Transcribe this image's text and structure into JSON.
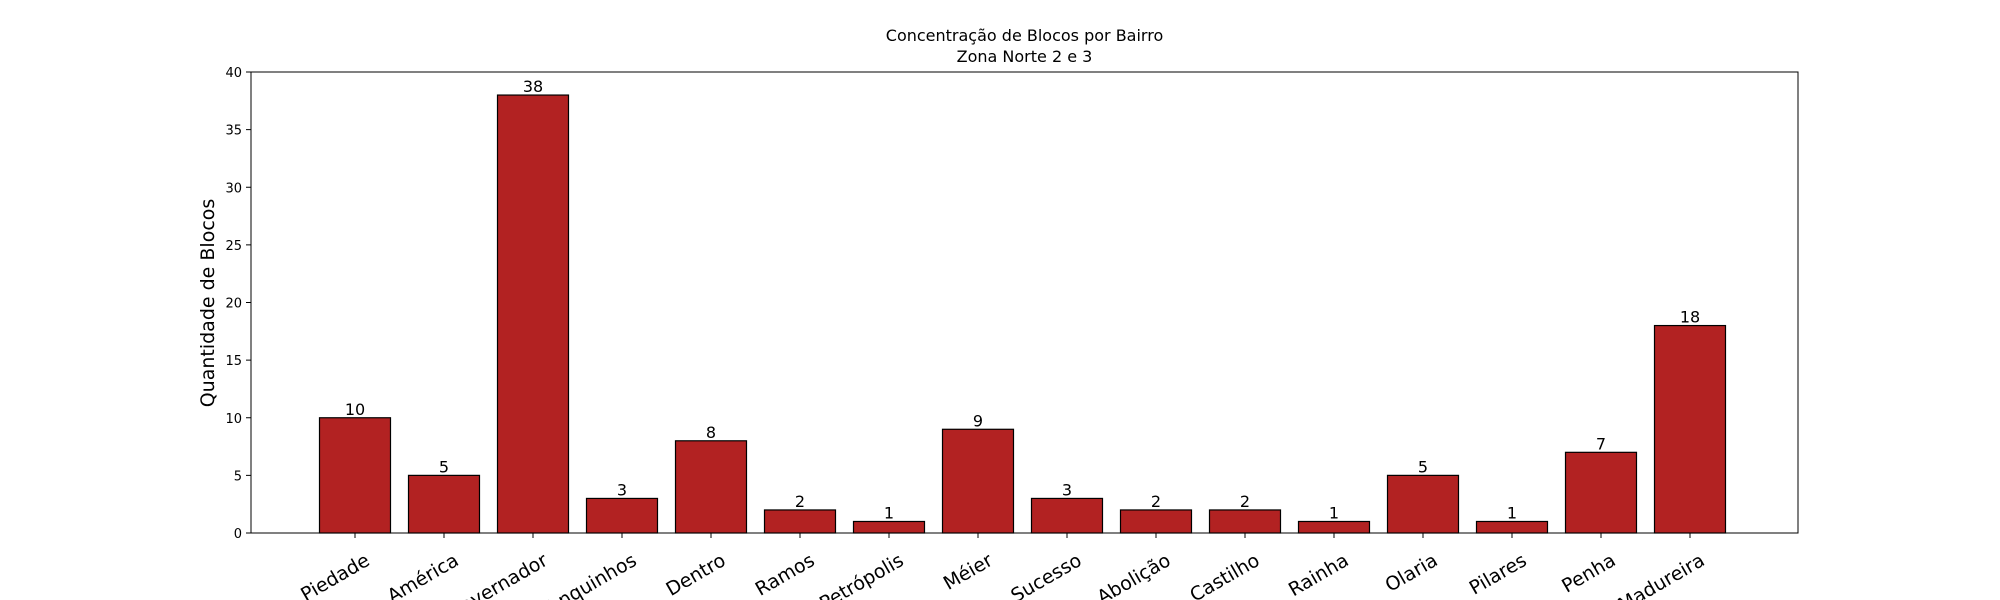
{
  "chart_data": {
    "type": "bar",
    "title": "Concentração de Blocos por Bairro",
    "subtitle": "Zona Norte 2 e 3",
    "xlabel": "",
    "ylabel": "Quantidade de Blocos",
    "ylim": [
      0,
      40
    ],
    "yticks": [
      0,
      5,
      10,
      15,
      20,
      25,
      30,
      35,
      40
    ],
    "categories": [
      "Piedade",
      "América",
      "Governador",
      "Tanquinhos",
      "Dentro",
      "Ramos",
      "Petrópolis",
      "Méier",
      "Sucesso",
      "Abolição",
      "Castilho",
      "Rainha",
      "Olaria",
      "Pilares",
      "Penha",
      "Madureira"
    ],
    "values": [
      10,
      5,
      38,
      3,
      8,
      2,
      1,
      9,
      3,
      2,
      2,
      1,
      5,
      1,
      7,
      18
    ],
    "bar_color": "#b22222",
    "bar_edge_color": "#000000",
    "grid": false,
    "legend": "none"
  }
}
